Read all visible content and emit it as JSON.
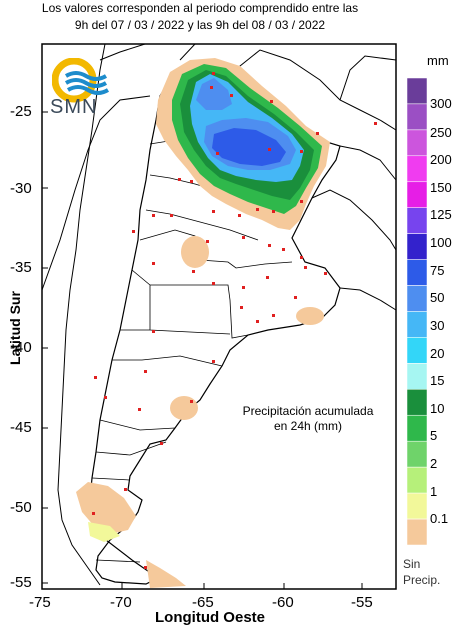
{
  "header": {
    "line1": "Los valores corresponden al periodo comprendido entre las",
    "line2": "9h del 07 / 03 / 2022  y las 9h del 08 / 03 / 2022"
  },
  "logo": {
    "text": "SMN"
  },
  "axes": {
    "ylabel": "Latitud Sur",
    "xlabel": "Longitud Oeste",
    "yticks": [
      "-25",
      "-30",
      "-35",
      "-40",
      "-45",
      "-50",
      "-55"
    ],
    "xticks": [
      "-75",
      "-70",
      "-65",
      "-60",
      "-55"
    ]
  },
  "annotation": {
    "line1": "Precipitación acumulada",
    "line2": "en 24h (mm)"
  },
  "legend": {
    "unit": "mm",
    "labels": [
      "300",
      "250",
      "200",
      "150",
      "125",
      "100",
      "75",
      "50",
      "30",
      "20",
      "15",
      "10",
      "5",
      "2",
      "1",
      "0.1"
    ],
    "no_data_line1": "Sin",
    "no_data_line2": "Precip.",
    "colors": [
      "#6a3d9a",
      "#9b4fc4",
      "#cc55dd",
      "#f03cf0",
      "#e61ee6",
      "#7744ee",
      "#3322cc",
      "#2d5be8",
      "#4e8ef0",
      "#45b7f6",
      "#33d6f8",
      "#a6f6f2",
      "#1a8f3c",
      "#2fb84b",
      "#6fd36a",
      "#b6f07a",
      "#f2f89a",
      "#f5c99b"
    ]
  }
}
